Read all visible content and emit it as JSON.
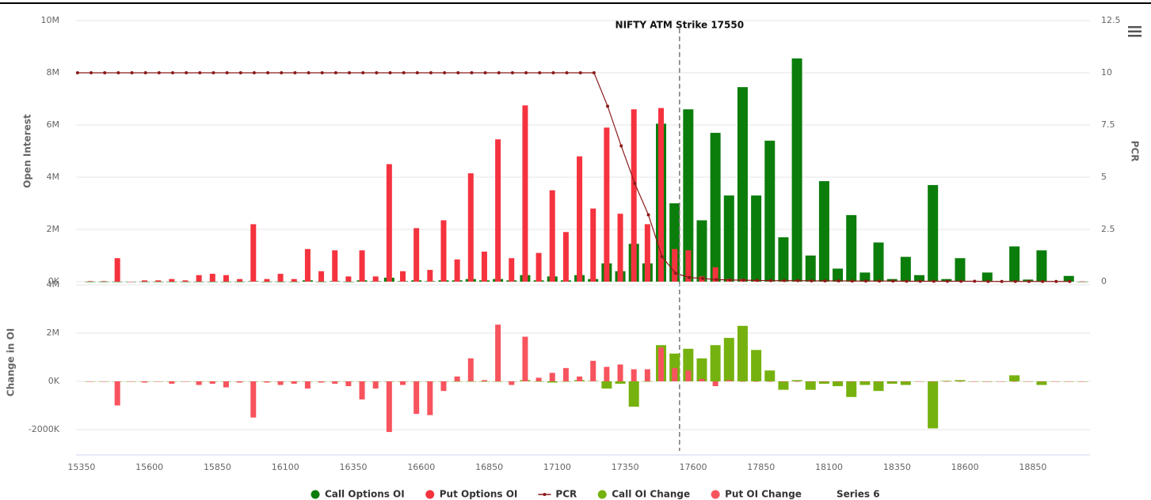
{
  "chart_data": [
    {
      "type": "bar",
      "ylabel": "Open Interest",
      "y2label": "PCR",
      "annotation": {
        "text": "NIFTY ATM Strike 17550",
        "x": 17550
      },
      "x": [
        15350,
        15400,
        15450,
        15500,
        15550,
        15600,
        15650,
        15700,
        15750,
        15800,
        15850,
        15900,
        15950,
        16000,
        16050,
        16100,
        16150,
        16200,
        16250,
        16300,
        16350,
        16400,
        16450,
        16500,
        16550,
        16600,
        16650,
        16700,
        16750,
        16800,
        16850,
        16900,
        16950,
        17000,
        17050,
        17100,
        17150,
        17200,
        17250,
        17300,
        17350,
        17400,
        17450,
        17500,
        17550,
        17600,
        17650,
        17700,
        17750,
        17800,
        17850,
        17900,
        17950,
        18000,
        18050,
        18100,
        18150,
        18200,
        18250,
        18300,
        18350,
        18400,
        18450,
        18500,
        18550,
        18600,
        18650,
        18700,
        18750,
        18800,
        18850,
        18900,
        18950,
        19000
      ],
      "xlim": [
        15330,
        19060
      ],
      "ylim": [
        0,
        10000000
      ],
      "yticks": [
        {
          "value": 0,
          "label": "0K"
        },
        {
          "value": 2000000,
          "label": "2M"
        },
        {
          "value": 4000000,
          "label": "4M"
        },
        {
          "value": 6000000,
          "label": "6M"
        },
        {
          "value": 8000000,
          "label": "8M"
        },
        {
          "value": 10000000,
          "label": "10M"
        }
      ],
      "y2lim": [
        0,
        12.5
      ],
      "y2ticks": [
        0,
        2.5,
        5,
        7.5,
        10,
        12.5
      ],
      "grid": true,
      "series": [
        {
          "name": "Call Options OI",
          "color": "#0b7d0b",
          "values": [
            0,
            0,
            0,
            0,
            0,
            0,
            0,
            0,
            0,
            0,
            0,
            0,
            20000,
            0,
            0,
            0,
            50000,
            0,
            20000,
            0,
            50000,
            20000,
            150000,
            20000,
            50000,
            20000,
            50000,
            50000,
            100000,
            50000,
            100000,
            50000,
            250000,
            50000,
            200000,
            50000,
            250000,
            100000,
            700000,
            400000,
            1450000,
            700000,
            6050000,
            3000000,
            6600000,
            2350000,
            5700000,
            3300000,
            7450000,
            3300000,
            5400000,
            1700000,
            8550000,
            1000000,
            3850000,
            500000,
            2550000,
            350000,
            1500000,
            100000,
            950000,
            250000,
            3700000,
            100000,
            900000,
            20000,
            350000,
            20000,
            1350000,
            80000,
            1200000,
            20000,
            220000,
            0
          ]
        },
        {
          "name": "Put Options OI",
          "color": "#f5333f",
          "values": [
            20000,
            20000,
            900000,
            0,
            50000,
            50000,
            100000,
            50000,
            250000,
            300000,
            250000,
            100000,
            2200000,
            100000,
            300000,
            100000,
            1250000,
            400000,
            1200000,
            200000,
            1200000,
            200000,
            4500000,
            400000,
            2050000,
            450000,
            2350000,
            850000,
            4150000,
            1150000,
            5450000,
            900000,
            6750000,
            1100000,
            3500000,
            1900000,
            4800000,
            2800000,
            5900000,
            2600000,
            6600000,
            2200000,
            6650000,
            1250000,
            1200000,
            200000,
            550000,
            100000,
            100000,
            50000,
            20000,
            20000,
            20000,
            20000,
            10000,
            10000,
            10000,
            10000,
            10000,
            10000,
            10000,
            10000,
            10000,
            10000,
            10000,
            10000,
            10000,
            10000,
            10000,
            10000,
            10000,
            10000,
            10000,
            10000
          ]
        },
        {
          "name": "PCR",
          "type": "line",
          "axis": "y2",
          "color": "#8b1a1a",
          "values": [
            10,
            10,
            10,
            10,
            10,
            10,
            10,
            10,
            10,
            10,
            10,
            10,
            10,
            10,
            10,
            10,
            10,
            10,
            10,
            10,
            10,
            10,
            10,
            10,
            10,
            10,
            10,
            10,
            10,
            10,
            10,
            10,
            10,
            10,
            10,
            10,
            10,
            10,
            10,
            8.4,
            6.5,
            4.7,
            3.2,
            1.2,
            0.4,
            0.2,
            0.15,
            0.1,
            0.08,
            0.07,
            0.06,
            0.05,
            0.05,
            0.05,
            0.04,
            0.04,
            0.04,
            0.03,
            0.03,
            0.03,
            0.03,
            0.02,
            0.02,
            0.02,
            0.02,
            0.02,
            0.02,
            0.01,
            0.01,
            0.01,
            0.01,
            0.01,
            0.01,
            0.01
          ]
        }
      ]
    },
    {
      "type": "bar",
      "ylabel": "Change in OI",
      "x": [
        15350,
        15400,
        15450,
        15500,
        15550,
        15600,
        15650,
        15700,
        15750,
        15800,
        15850,
        15900,
        15950,
        16000,
        16050,
        16100,
        16150,
        16200,
        16250,
        16300,
        16350,
        16400,
        16450,
        16500,
        16550,
        16600,
        16650,
        16700,
        16750,
        16800,
        16850,
        16900,
        16950,
        17000,
        17050,
        17100,
        17150,
        17200,
        17250,
        17300,
        17350,
        17400,
        17450,
        17500,
        17550,
        17600,
        17650,
        17700,
        17750,
        17800,
        17850,
        17900,
        17950,
        18000,
        18050,
        18100,
        18150,
        18200,
        18250,
        18300,
        18350,
        18400,
        18450,
        18500,
        18550,
        18600,
        18650,
        18700,
        18750,
        18800,
        18850,
        18900,
        18950,
        19000
      ],
      "xlim": [
        15330,
        19060
      ],
      "xticks": [
        15350,
        15600,
        15850,
        16100,
        16350,
        16600,
        16850,
        17100,
        17350,
        17600,
        17850,
        18100,
        18350,
        18600,
        18850
      ],
      "ylim": [
        -3000000,
        4000000
      ],
      "yticks": [
        {
          "value": -2000000,
          "label": "-2000K"
        },
        {
          "value": 0,
          "label": "0K"
        },
        {
          "value": 2000000,
          "label": "2M"
        },
        {
          "value": 4000000,
          "label": "4M"
        }
      ],
      "grid": true,
      "series": [
        {
          "name": "Call OI Change",
          "color": "#76b20f",
          "values": [
            0,
            0,
            0,
            0,
            0,
            0,
            0,
            0,
            0,
            0,
            0,
            0,
            0,
            0,
            0,
            0,
            0,
            0,
            0,
            0,
            0,
            0,
            0,
            0,
            0,
            0,
            0,
            0,
            0,
            0,
            0,
            0,
            50000,
            0,
            -50000,
            0,
            50000,
            20000,
            -300000,
            -100000,
            -1050000,
            0,
            1500000,
            1150000,
            1350000,
            950000,
            1500000,
            1800000,
            2300000,
            1300000,
            450000,
            -350000,
            50000,
            -350000,
            -100000,
            -200000,
            -650000,
            -150000,
            -400000,
            -100000,
            -150000,
            0,
            -1950000,
            20000,
            50000,
            0,
            -20000,
            0,
            250000,
            0,
            -150000,
            0,
            0,
            0
          ]
        },
        {
          "name": "Put OI Change",
          "color": "#f7545e",
          "values": [
            0,
            0,
            -1000000,
            0,
            -50000,
            0,
            -100000,
            0,
            -150000,
            -100000,
            -250000,
            -50000,
            -1500000,
            -50000,
            -150000,
            -100000,
            -300000,
            -50000,
            -100000,
            -200000,
            -750000,
            -300000,
            -2100000,
            -150000,
            -1350000,
            -1400000,
            -400000,
            200000,
            950000,
            50000,
            2350000,
            -150000,
            1850000,
            150000,
            350000,
            550000,
            200000,
            850000,
            600000,
            700000,
            500000,
            500000,
            1400000,
            550000,
            450000,
            100000,
            -200000,
            50000,
            0,
            0,
            0,
            0,
            0,
            0,
            0,
            0,
            0,
            0,
            0,
            0,
            0,
            0,
            0,
            0,
            0,
            0,
            0,
            0,
            0,
            0,
            0,
            0,
            0,
            0
          ]
        },
        {
          "name": "Series 6"
        }
      ]
    }
  ]
}
